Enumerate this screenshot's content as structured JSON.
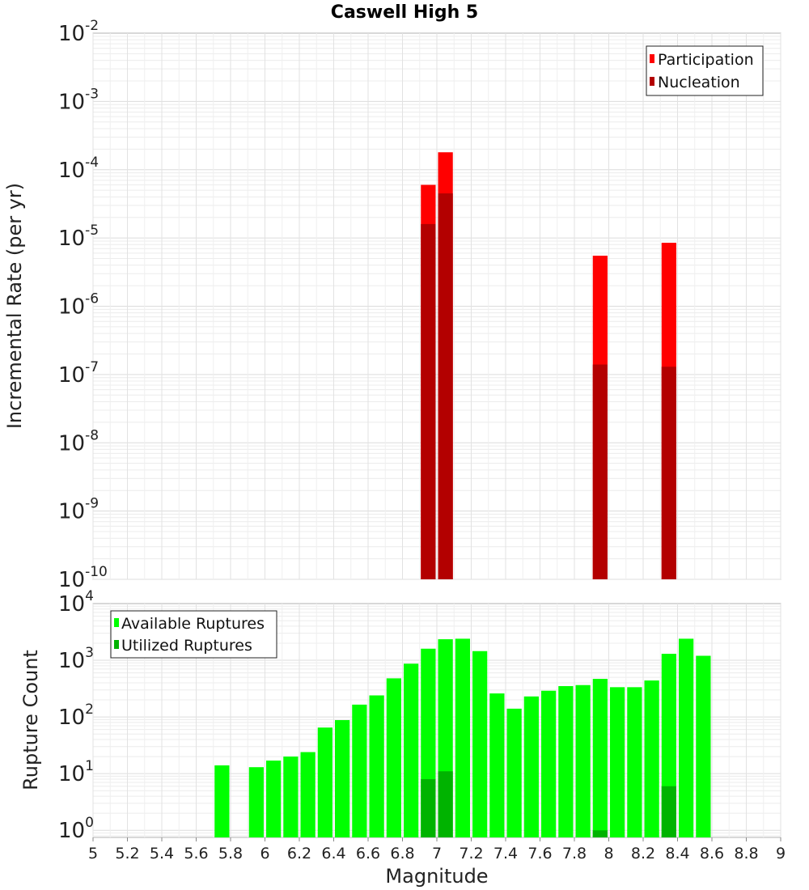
{
  "chart_data": [
    {
      "type": "bar",
      "title": "Caswell High 5",
      "xlabel": "Magnitude",
      "ylabel": "Incremental Rate (per yr)",
      "yscale": "log",
      "xlim": [
        5,
        9
      ],
      "ylim": [
        1e-10,
        0.01
      ],
      "ytick_base": "10",
      "ytick_exponents": [
        "-10",
        "-9",
        "-8",
        "-7",
        "-6",
        "-5",
        "-4",
        "-3",
        "-2"
      ],
      "bin_width": 0.1,
      "legend": "top-right",
      "grid": true,
      "series": [
        {
          "name": "Participation",
          "color": "#ff0000",
          "points": [
            {
              "x": 6.95,
              "y": 6e-05
            },
            {
              "x": 7.05,
              "y": 0.00018
            },
            {
              "x": 7.95,
              "y": 5.5e-06
            },
            {
              "x": 8.35,
              "y": 8.5e-06
            }
          ]
        },
        {
          "name": "Nucleation",
          "color": "#b30000",
          "points": [
            {
              "x": 6.95,
              "y": 1.6e-05
            },
            {
              "x": 7.05,
              "y": 4.5e-05
            },
            {
              "x": 7.95,
              "y": 1.4e-07
            },
            {
              "x": 8.35,
              "y": 1.3e-07
            }
          ]
        }
      ]
    },
    {
      "type": "bar",
      "xlabel": "Magnitude",
      "ylabel": "Rupture Count",
      "yscale": "log",
      "xlim": [
        5,
        9
      ],
      "ylim": [
        0.75,
        10000
      ],
      "ytick_base": "10",
      "ytick_exponents": [
        "0",
        "1",
        "2",
        "3",
        "4"
      ],
      "xtick_labels": [
        "5",
        "5.2",
        "5.4",
        "5.6",
        "5.8",
        "6",
        "6.2",
        "6.4",
        "6.6",
        "6.8",
        "7",
        "7.2",
        "7.4",
        "7.6",
        "7.8",
        "8",
        "8.2",
        "8.4",
        "8.6",
        "8.8",
        "9"
      ],
      "bin_width": 0.1,
      "legend": "top-left",
      "grid": true,
      "series": [
        {
          "name": "Available Ruptures",
          "color": "#00ff00",
          "points": [
            {
              "x": 5.75,
              "y": 14
            },
            {
              "x": 5.95,
              "y": 13
            },
            {
              "x": 6.05,
              "y": 17
            },
            {
              "x": 6.15,
              "y": 20
            },
            {
              "x": 6.25,
              "y": 24
            },
            {
              "x": 6.35,
              "y": 65
            },
            {
              "x": 6.45,
              "y": 88
            },
            {
              "x": 6.55,
              "y": 165
            },
            {
              "x": 6.65,
              "y": 240
            },
            {
              "x": 6.75,
              "y": 480
            },
            {
              "x": 6.85,
              "y": 870
            },
            {
              "x": 6.95,
              "y": 1600
            },
            {
              "x": 7.05,
              "y": 2350
            },
            {
              "x": 7.15,
              "y": 2400
            },
            {
              "x": 7.25,
              "y": 1450
            },
            {
              "x": 7.35,
              "y": 260
            },
            {
              "x": 7.45,
              "y": 140
            },
            {
              "x": 7.55,
              "y": 230
            },
            {
              "x": 7.65,
              "y": 290
            },
            {
              "x": 7.75,
              "y": 350
            },
            {
              "x": 7.85,
              "y": 365
            },
            {
              "x": 7.95,
              "y": 470
            },
            {
              "x": 8.05,
              "y": 335
            },
            {
              "x": 8.15,
              "y": 335
            },
            {
              "x": 8.25,
              "y": 440
            },
            {
              "x": 8.35,
              "y": 1300
            },
            {
              "x": 8.45,
              "y": 2400
            },
            {
              "x": 8.55,
              "y": 1200
            }
          ]
        },
        {
          "name": "Utilized Ruptures",
          "color": "#00b300",
          "points": [
            {
              "x": 6.95,
              "y": 8
            },
            {
              "x": 7.05,
              "y": 11
            },
            {
              "x": 7.95,
              "y": 1
            },
            {
              "x": 8.35,
              "y": 6
            }
          ]
        }
      ]
    }
  ]
}
